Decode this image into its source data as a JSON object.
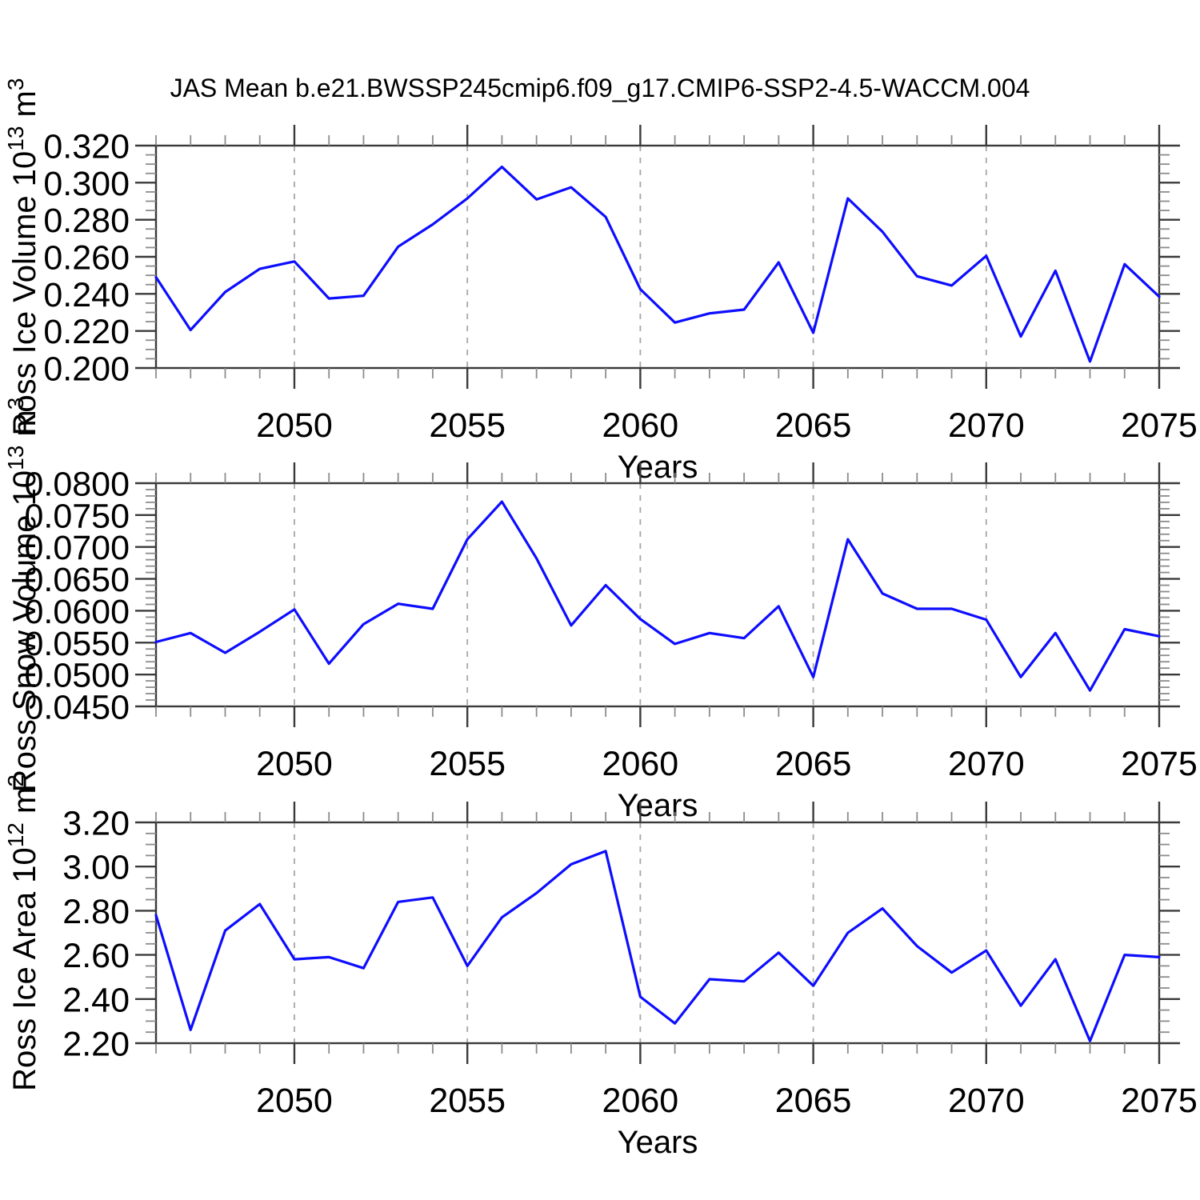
{
  "title": "JAS Mean b.e21.BWSSP245cmip6.f09_g17.CMIP6-SSP2-4.5-WACCM.004",
  "colors": {
    "line": "#0d0dff",
    "frame": "#3a3a3a",
    "major_tick": "#3a3a3a",
    "minor_tick": "#8c8c8c",
    "gridline": "#a6a6a6",
    "text": "#000000"
  },
  "x_axis": {
    "label": "Years",
    "range": [
      2046,
      2075
    ],
    "major_ticks": [
      2050,
      2055,
      2060,
      2065,
      2070,
      2075
    ],
    "major_labels": [
      "2050",
      "2055",
      "2060",
      "2065",
      "2070",
      "2075"
    ],
    "minor_step": 1,
    "gridlines": [
      2050,
      2055,
      2060,
      2065,
      2070
    ]
  },
  "years": [
    2046,
    2047,
    2048,
    2049,
    2050,
    2051,
    2052,
    2053,
    2054,
    2055,
    2056,
    2057,
    2058,
    2059,
    2060,
    2061,
    2062,
    2063,
    2064,
    2065,
    2066,
    2067,
    2068,
    2069,
    2070,
    2071,
    2072,
    2073,
    2074,
    2075
  ],
  "chart_data": [
    {
      "type": "line",
      "name": "ross-ice-volume",
      "ylabel": "Ross Ice Volume 10^13 m^3",
      "ylabel_parts": [
        {
          "text": "Ross Ice Volume 10"
        },
        {
          "text": "13",
          "sup": true
        },
        {
          "text": " m"
        },
        {
          "text": "3",
          "sup": true
        }
      ],
      "xlabel": "Years",
      "ylim": [
        0.2,
        0.32
      ],
      "ytick_labels": [
        "0.200",
        "0.220",
        "0.240",
        "0.260",
        "0.280",
        "0.300",
        "0.320"
      ],
      "ytick_values": [
        0.2,
        0.22,
        0.24,
        0.26,
        0.28,
        0.3,
        0.32
      ],
      "ytick_minor_step": 0.005,
      "grid": "vertical-dashed",
      "legend": "none",
      "values": [
        0.249,
        0.2205,
        0.241,
        0.2535,
        0.2575,
        0.2375,
        0.239,
        0.2655,
        0.2775,
        0.2915,
        0.3085,
        0.291,
        0.2975,
        0.2815,
        0.2425,
        0.2245,
        0.2295,
        0.2315,
        0.257,
        0.219,
        0.2915,
        0.2735,
        0.2495,
        0.2445,
        0.2605,
        0.217,
        0.2525,
        0.2035,
        0.256,
        0.2385
      ]
    },
    {
      "type": "line",
      "name": "ross-snow-volume",
      "ylabel": "Ross Snow Volume 10^13 m^3",
      "ylabel_parts": [
        {
          "text": "Ross Snow Volume 10"
        },
        {
          "text": "13",
          "sup": true
        },
        {
          "text": " m"
        },
        {
          "text": "3",
          "sup": true
        }
      ],
      "xlabel": "Years",
      "ylim": [
        0.045,
        0.08
      ],
      "ytick_labels": [
        "0.0450",
        "0.0500",
        "0.0550",
        "0.0600",
        "0.0650",
        "0.0700",
        "0.0750",
        "0.0800"
      ],
      "ytick_values": [
        0.045,
        0.05,
        0.055,
        0.06,
        0.065,
        0.07,
        0.075,
        0.08
      ],
      "ytick_minor_step": 0.001,
      "grid": "vertical-dashed",
      "legend": "none",
      "values": [
        0.0551,
        0.0565,
        0.0534,
        0.0567,
        0.0602,
        0.0517,
        0.0579,
        0.0611,
        0.0603,
        0.0712,
        0.0771,
        0.0682,
        0.0577,
        0.064,
        0.0587,
        0.0548,
        0.0565,
        0.0557,
        0.0607,
        0.0496,
        0.0712,
        0.0627,
        0.0603,
        0.0603,
        0.0586,
        0.0496,
        0.0565,
        0.0475,
        0.0571,
        0.056
      ]
    },
    {
      "type": "line",
      "name": "ross-ice-area",
      "ylabel": "Ross Ice Area 10^12 m^2",
      "ylabel_parts": [
        {
          "text": "Ross Ice Area 10"
        },
        {
          "text": "12",
          "sup": true
        },
        {
          "text": " m"
        },
        {
          "text": "2",
          "sup": true
        }
      ],
      "xlabel": "Years",
      "ylim": [
        2.2,
        3.2
      ],
      "ytick_labels": [
        "2.20",
        "2.40",
        "2.60",
        "2.80",
        "3.00",
        "3.20"
      ],
      "ytick_values": [
        2.2,
        2.4,
        2.6,
        2.8,
        3.0,
        3.2
      ],
      "ytick_minor_step": 0.05,
      "grid": "vertical-dashed",
      "legend": "none",
      "values": [
        2.78,
        2.26,
        2.71,
        2.83,
        2.58,
        2.59,
        2.54,
        2.84,
        2.86,
        2.55,
        2.77,
        2.88,
        3.01,
        3.07,
        2.41,
        2.29,
        2.49,
        2.48,
        2.61,
        2.46,
        2.7,
        2.81,
        2.64,
        2.52,
        2.62,
        2.37,
        2.58,
        2.21,
        2.6,
        2.59
      ]
    }
  ]
}
